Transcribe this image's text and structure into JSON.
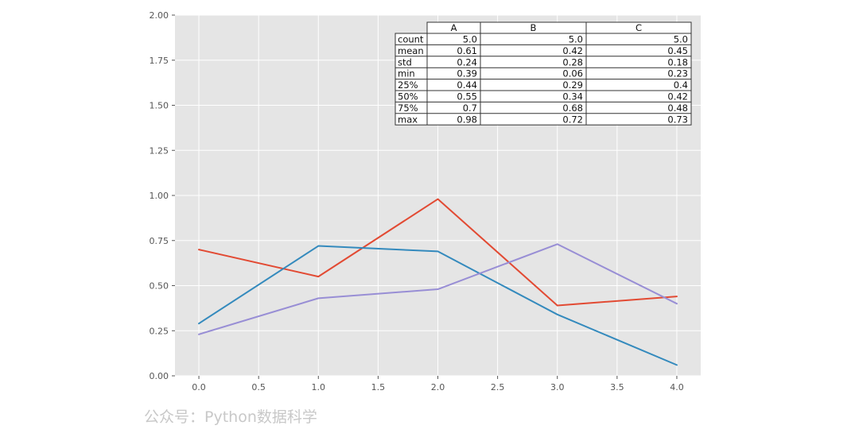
{
  "chart_data": {
    "type": "line",
    "x": [
      0,
      1,
      2,
      3,
      4
    ],
    "xlim": [
      -0.2,
      4.2
    ],
    "ylim": [
      0,
      2.0
    ],
    "x_ticks": [
      "0.0",
      "0.5",
      "1.0",
      "1.5",
      "2.0",
      "2.5",
      "3.0",
      "3.5",
      "4.0"
    ],
    "y_ticks": [
      "0.00",
      "0.25",
      "0.50",
      "0.75",
      "1.00",
      "1.25",
      "1.50",
      "1.75",
      "2.00"
    ],
    "grid": true,
    "colors": {
      "plot_background": "#e5e5e5",
      "grid": "#ffffff",
      "series_A": "#e24a33",
      "series_B": "#348abd",
      "series_C": "#988ed5"
    },
    "series": [
      {
        "key": "A",
        "values": [
          0.7,
          0.55,
          0.98,
          0.39,
          0.44
        ]
      },
      {
        "key": "B",
        "values": [
          0.29,
          0.72,
          0.69,
          0.34,
          0.06
        ]
      },
      {
        "key": "C",
        "values": [
          0.23,
          0.43,
          0.48,
          0.73,
          0.4
        ]
      }
    ],
    "table": {
      "columns": [
        "A",
        "B",
        "C"
      ],
      "rows": [
        {
          "label": "count",
          "values": [
            "5.0",
            "5.0",
            "5.0"
          ]
        },
        {
          "label": "mean",
          "values": [
            "0.61",
            "0.42",
            "0.45"
          ]
        },
        {
          "label": "std",
          "values": [
            "0.24",
            "0.28",
            "0.18"
          ]
        },
        {
          "label": "min",
          "values": [
            "0.39",
            "0.06",
            "0.23"
          ]
        },
        {
          "label": "25%",
          "values": [
            "0.44",
            "0.29",
            "0.4"
          ]
        },
        {
          "label": "50%",
          "values": [
            "0.55",
            "0.34",
            "0.42"
          ]
        },
        {
          "label": "75%",
          "values": [
            "0.7",
            "0.68",
            "0.48"
          ]
        },
        {
          "label": "max",
          "values": [
            "0.98",
            "0.72",
            "0.73"
          ]
        }
      ]
    }
  },
  "watermark": "公众号：Python数据科学"
}
